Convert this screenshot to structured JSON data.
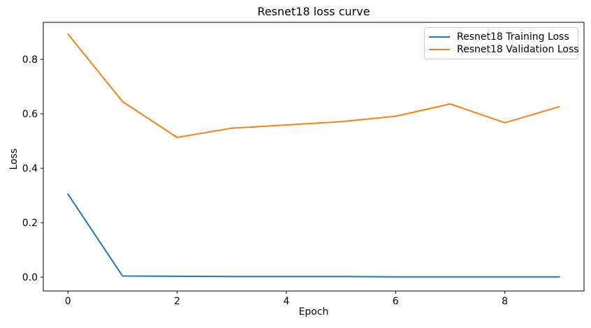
{
  "chart_data": {
    "type": "line",
    "title": "Resnet18 loss curve",
    "xlabel": "Epoch",
    "ylabel": "Loss",
    "x": [
      0,
      1,
      2,
      3,
      4,
      5,
      6,
      7,
      8,
      9
    ],
    "series": [
      {
        "name": "Resnet18 Training Loss",
        "color": "#1f77b4",
        "values": [
          0.305,
          0.004,
          0.003,
          0.002,
          0.002,
          0.002,
          0.001,
          0.001,
          0.001,
          0.001
        ]
      },
      {
        "name": "Resnet18 Validation Loss",
        "color": "#ff7f0e",
        "values": [
          0.893,
          0.645,
          0.513,
          0.547,
          0.559,
          0.571,
          0.591,
          0.636,
          0.567,
          0.626
        ]
      }
    ],
    "xticks": [
      0,
      2,
      4,
      6,
      8
    ],
    "xticklabels": [
      "0",
      "2",
      "4",
      "6",
      "8"
    ],
    "yticks": [
      0.0,
      0.2,
      0.4,
      0.6,
      0.8
    ],
    "yticklabels": [
      "0.0",
      "0.2",
      "0.4",
      "0.6",
      "0.8"
    ],
    "xlim": [
      -0.45,
      9.45
    ],
    "ylim": [
      -0.051,
      0.936
    ],
    "grid": false,
    "legend_position": "upper right",
    "axis_color": "#000000",
    "background_color": "#ffffff"
  }
}
